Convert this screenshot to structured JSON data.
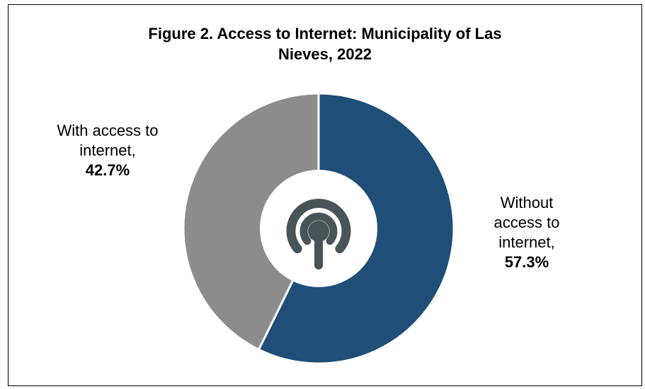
{
  "title_lines": [
    "Figure 2. Access to Internet: Municipality of Las",
    "Nieves, 2022"
  ],
  "chart_data": {
    "type": "pie",
    "title": "Figure 2. Access to Internet: Municipality of Las Nieves, 2022",
    "slices": [
      {
        "label": "Without access to internet",
        "value": 57.3,
        "color": "#1f4e79"
      },
      {
        "label": "With access to internet",
        "value": 42.7,
        "color": "#8c8c8c"
      }
    ],
    "unit": "%"
  },
  "labels": {
    "without": {
      "lines": [
        "Without",
        "access to",
        "internet,"
      ],
      "value": "57.3%"
    },
    "with": {
      "lines": [
        "With access to",
        "internet,"
      ],
      "value": "42.7%"
    }
  },
  "center_icon": "broadcast-signal-icon",
  "colors": {
    "icon": "#485457",
    "hole": "#ffffff"
  }
}
